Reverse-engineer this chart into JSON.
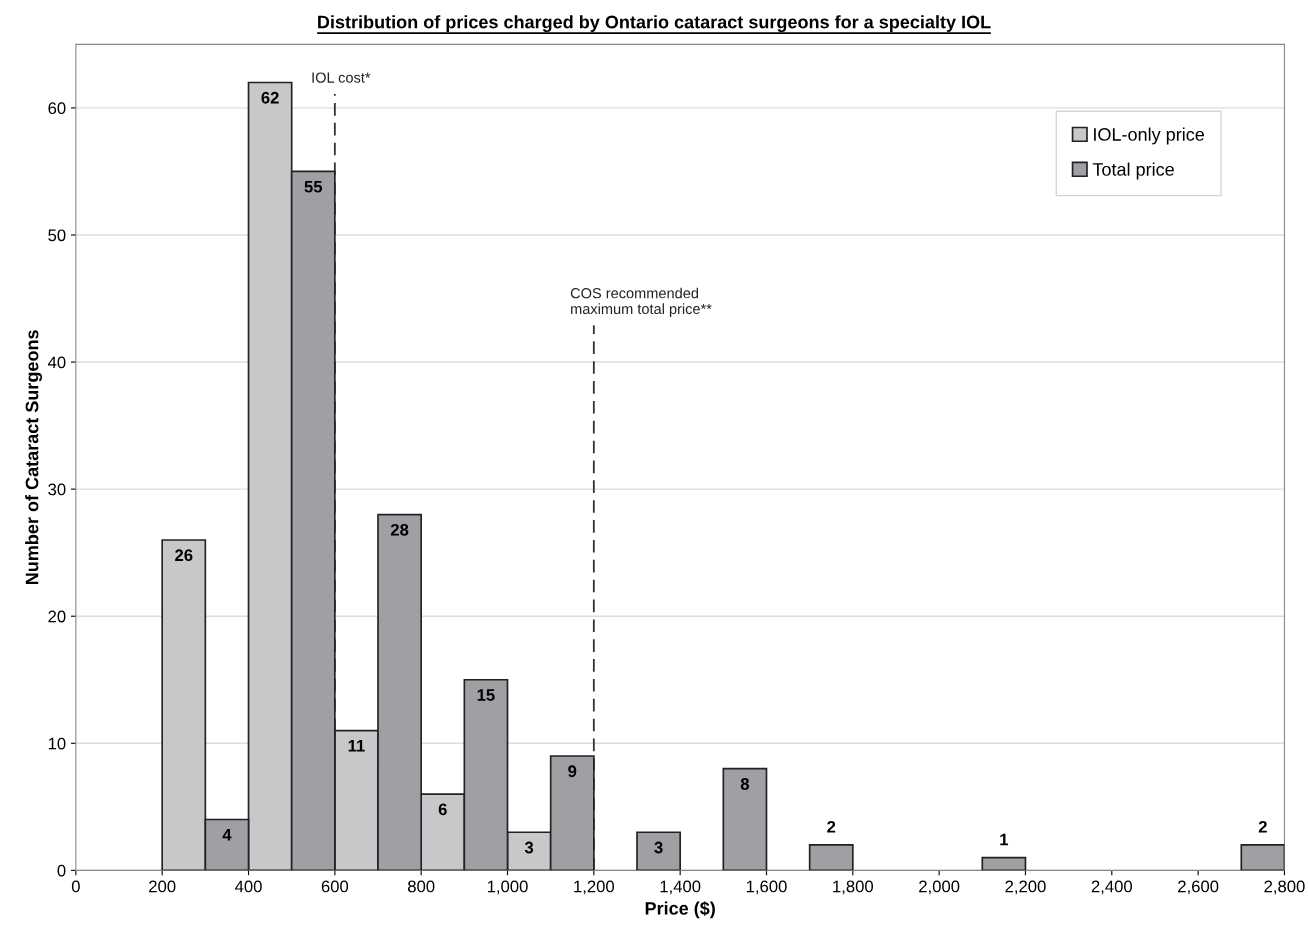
{
  "chart_data": {
    "type": "bar",
    "title": "Distribution of prices charged by Ontario cataract surgeons for a specialty IOL",
    "xlabel": "Price ($)",
    "ylabel": "Number of Cataract Surgeons",
    "series": [
      {
        "name": "IOL-only price",
        "color": "#c8c8ca",
        "x": [
          250,
          450,
          650,
          850,
          1050
        ],
        "values": [
          26,
          62,
          11,
          6,
          3
        ]
      },
      {
        "name": "Total price",
        "color": "#a0a0a4",
        "x": [
          350,
          550,
          750,
          950,
          1150,
          1350,
          1550,
          1750,
          2150,
          2750
        ],
        "values": [
          4,
          55,
          28,
          15,
          9,
          3,
          8,
          2,
          1,
          2
        ]
      }
    ],
    "xlim": [
      0,
      2800
    ],
    "ylim": [
      0,
      65
    ],
    "xticks": [
      0,
      200,
      400,
      600,
      800,
      {
        "value": 1000,
        "label": "1,000"
      },
      {
        "value": 1200,
        "label": "1,200"
      },
      {
        "value": 1400,
        "label": "1,400"
      },
      {
        "value": 1600,
        "label": "1,600"
      },
      {
        "value": 1800,
        "label": "1,800"
      },
      {
        "value": 2000,
        "label": "2,000"
      },
      {
        "value": 2200,
        "label": "2,200"
      },
      {
        "value": 2400,
        "label": "2,400"
      },
      {
        "value": 2600,
        "label": "2,600"
      },
      {
        "value": 2800,
        "label": "2,800"
      }
    ],
    "yticks": [
      0,
      10,
      20,
      30,
      40,
      50,
      60
    ],
    "ref_lines": [
      {
        "axis": "x",
        "value": 600,
        "label": "IOL cost*",
        "line_style": "dashed"
      },
      {
        "axis": "x",
        "value": 1200,
        "label": "COS recommended\nmaximum total price**",
        "line_style": "dashed"
      }
    ],
    "data_labels": true,
    "grid": "y",
    "legend": "top right"
  }
}
